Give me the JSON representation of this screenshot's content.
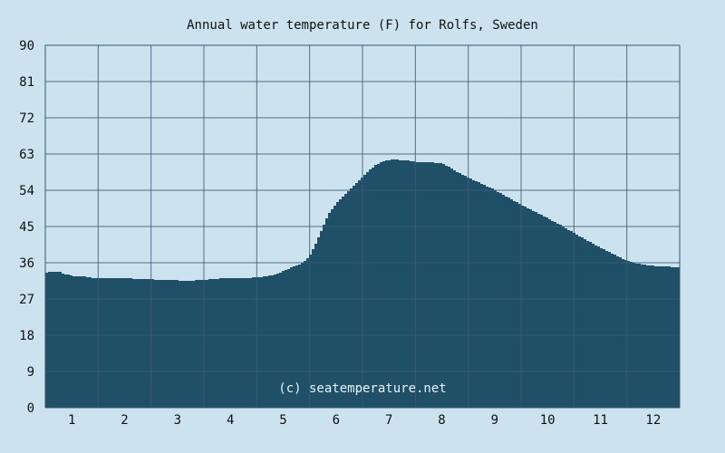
{
  "chart_data": {
    "type": "area",
    "title": "Annual water temperature (F) for Rolfs, Sweden",
    "xlabel": "",
    "ylabel": "",
    "ylim": [
      0,
      90
    ],
    "xlim": [
      0.5,
      12.5
    ],
    "y_ticks": [
      "0",
      "9",
      "18",
      "27",
      "36",
      "45",
      "54",
      "63",
      "72",
      "81",
      "90"
    ],
    "x_ticks": [
      "1",
      "2",
      "3",
      "4",
      "5",
      "6",
      "7",
      "8",
      "9",
      "10",
      "11",
      "12"
    ],
    "grid": true,
    "colors": {
      "background": "#cce3ef",
      "fill": "#1f5068",
      "grid": "#3c5a74",
      "border": "#35556c"
    },
    "watermark": "(c) seatemperature.net",
    "x": [
      0.5,
      0.6,
      0.75,
      0.85,
      1.0,
      1.2,
      1.4,
      1.6,
      1.8,
      2.0,
      2.2,
      2.4,
      2.6,
      2.8,
      3.0,
      3.2,
      3.4,
      3.6,
      3.8,
      4.0,
      4.2,
      4.4,
      4.6,
      4.8,
      5.0,
      5.2,
      5.35,
      5.45,
      5.55,
      5.65,
      5.75,
      5.85,
      6.0,
      6.15,
      6.3,
      6.45,
      6.6,
      6.75,
      6.9,
      7.05,
      7.2,
      7.35,
      7.5,
      7.65,
      7.8,
      8.0,
      8.15,
      8.3,
      8.5,
      8.7,
      8.9,
      9.1,
      9.3,
      9.5,
      9.7,
      9.9,
      10.1,
      10.3,
      10.5,
      10.7,
      10.9,
      11.1,
      11.3,
      11.5,
      11.7,
      11.9,
      12.1,
      12.3,
      12.5
    ],
    "y": [
      33.6,
      33.8,
      33.7,
      33.2,
      32.7,
      32.6,
      32.2,
      32.2,
      32.1,
      32.2,
      32.0,
      31.9,
      31.8,
      31.8,
      31.6,
      31.5,
      31.7,
      31.9,
      32.1,
      32.2,
      32.1,
      32.3,
      32.5,
      33.0,
      34.0,
      35.2,
      36.0,
      37.2,
      39.5,
      42.5,
      45.5,
      48.5,
      51.0,
      53.0,
      55.0,
      57.0,
      59.0,
      60.5,
      61.3,
      61.6,
      61.5,
      61.3,
      61.0,
      61.0,
      60.9,
      60.6,
      59.5,
      58.3,
      57.0,
      55.8,
      54.6,
      53.2,
      51.7,
      50.2,
      48.9,
      47.6,
      46.2,
      44.8,
      43.2,
      41.7,
      40.3,
      38.9,
      37.6,
      36.4,
      35.7,
      35.3,
      35.1,
      35.0,
      34.8
    ]
  }
}
